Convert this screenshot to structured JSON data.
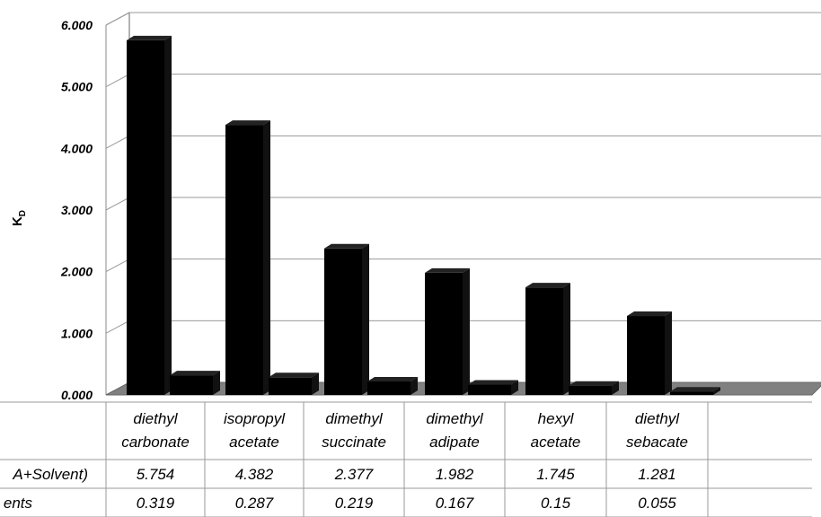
{
  "chart_data": {
    "type": "bar",
    "ylabel": "K",
    "ylabel_sub": "D",
    "ylim": [
      0,
      6
    ],
    "yticks": [
      "0.000",
      "1.000",
      "2.000",
      "3.000",
      "4.000",
      "5.000",
      "6.000"
    ],
    "categories": [
      [
        "diethyl",
        "carbonate"
      ],
      [
        "isopropyl",
        "acetate"
      ],
      [
        "dimethyl",
        "succinate"
      ],
      [
        "dimethyl",
        "adipate"
      ],
      [
        "hexyl",
        "acetate"
      ],
      [
        "diethyl",
        "sebacate"
      ]
    ],
    "series": [
      {
        "name": "A+Solvent)",
        "values": [
          5.754,
          4.382,
          2.377,
          1.982,
          1.745,
          1.281
        ],
        "labels": [
          "5.754",
          "4.382",
          "2.377",
          "1.982",
          "1.745",
          "1.281"
        ]
      },
      {
        "name": "ents",
        "values": [
          0.319,
          0.287,
          0.219,
          0.167,
          0.15,
          0.055
        ],
        "labels": [
          "0.319",
          "0.287",
          "0.219",
          "0.167",
          "0.15",
          "0.055"
        ]
      }
    ],
    "grid": true,
    "colors": {
      "bars": "#000000",
      "floor": "#808080",
      "grid": "#999999"
    }
  }
}
